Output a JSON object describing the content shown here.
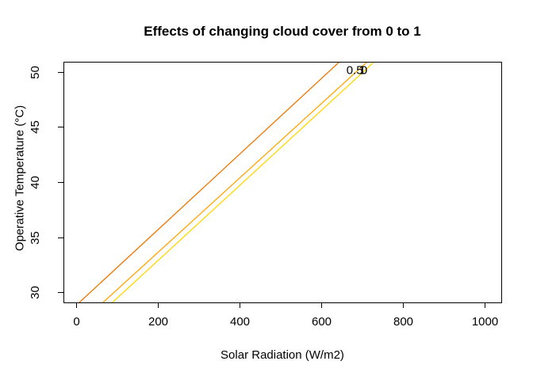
{
  "figure": {
    "background": "#ffffff",
    "axis_color": "#000000",
    "text_color": "#000000"
  },
  "chart_data": {
    "type": "line",
    "title": "Effects of changing cloud cover from 0 to 1",
    "xlabel": "Solar Radiation (W/m2)",
    "ylabel": "Operative Temperature (°C)",
    "xlim": [
      -31,
      1041
    ],
    "ylim": [
      29.1,
      50.9
    ],
    "x_ticks": [
      0,
      200,
      400,
      600,
      800,
      1000
    ],
    "y_ticks": [
      30,
      35,
      40,
      45,
      50
    ],
    "grid": false,
    "legend_position": "none",
    "series": [
      {
        "name": "cloud-cover-0",
        "label": "0",
        "color": "#ee7600",
        "points": [
          [
            8,
            29.1
          ],
          [
            645,
            50.9
          ]
        ]
      },
      {
        "name": "cloud-cover-0.5",
        "label": "0.5",
        "color": "#ffa500",
        "points": [
          [
            66,
            29.1
          ],
          [
            713,
            50.9
          ]
        ]
      },
      {
        "name": "cloud-cover-1",
        "label": "1",
        "color": "#ffd700",
        "points": [
          [
            89,
            29.1
          ],
          [
            730,
            50.9
          ]
        ]
      }
    ],
    "annotations": [
      {
        "text": "0.5",
        "x": 682,
        "y": 50.15
      },
      {
        "text": "1",
        "x": 701,
        "y": 50.15
      },
      {
        "text": "0",
        "x": 705,
        "y": 50.15
      }
    ]
  }
}
